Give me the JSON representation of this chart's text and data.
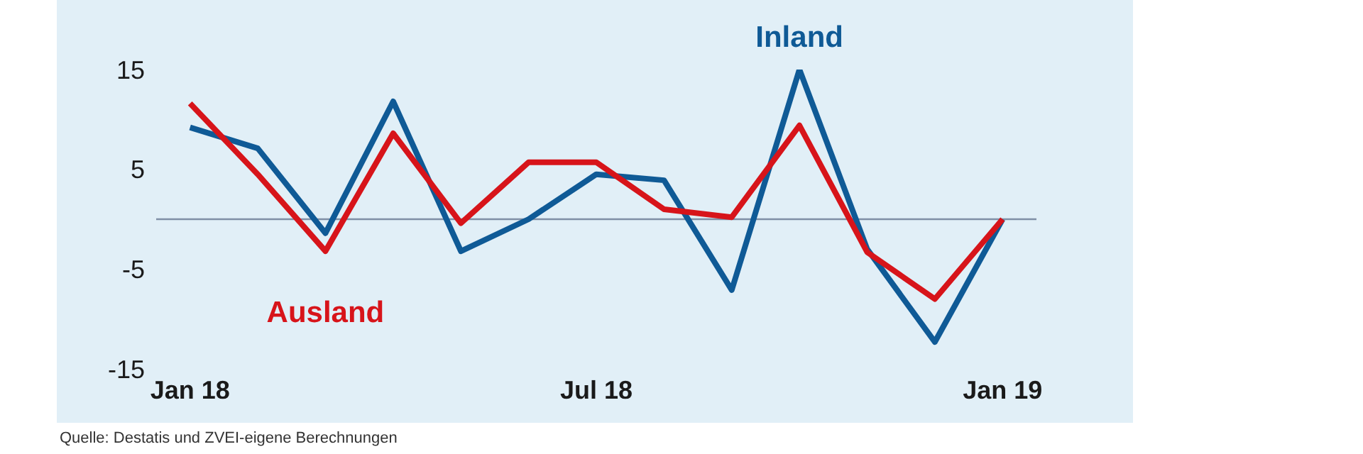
{
  "chart_data": {
    "type": "line",
    "categories": [
      "Jan 18",
      null,
      null,
      null,
      null,
      null,
      "Jul 18",
      null,
      null,
      null,
      null,
      null,
      "Jan 19"
    ],
    "series": [
      {
        "name": "Inland",
        "color": "#0f5a96",
        "values": [
          9.2,
          7.1,
          -1.4,
          11.8,
          -3.2,
          0,
          4.5,
          3.9,
          -7.1,
          15,
          -3.0,
          -12.3,
          0
        ]
      },
      {
        "name": "Ausland",
        "color": "#d7141a",
        "values": [
          11.6,
          4.5,
          -3.2,
          8.6,
          -0.4,
          5.7,
          5.7,
          1.0,
          0.2,
          9.4,
          -3.3,
          -8.0,
          0
        ]
      }
    ],
    "ylim": [
      -15,
      15
    ],
    "yticks": [
      -15,
      -5,
      5,
      15
    ],
    "ref_lines": [
      {
        "axis": "y",
        "value": 0,
        "color": "#7f8fa6"
      }
    ],
    "grid": false,
    "legend": false,
    "marker": "none",
    "line_style": "solid",
    "annotations": [
      "Quelle: Destatis und ZVEI-eigene Berechnungen"
    ]
  }
}
